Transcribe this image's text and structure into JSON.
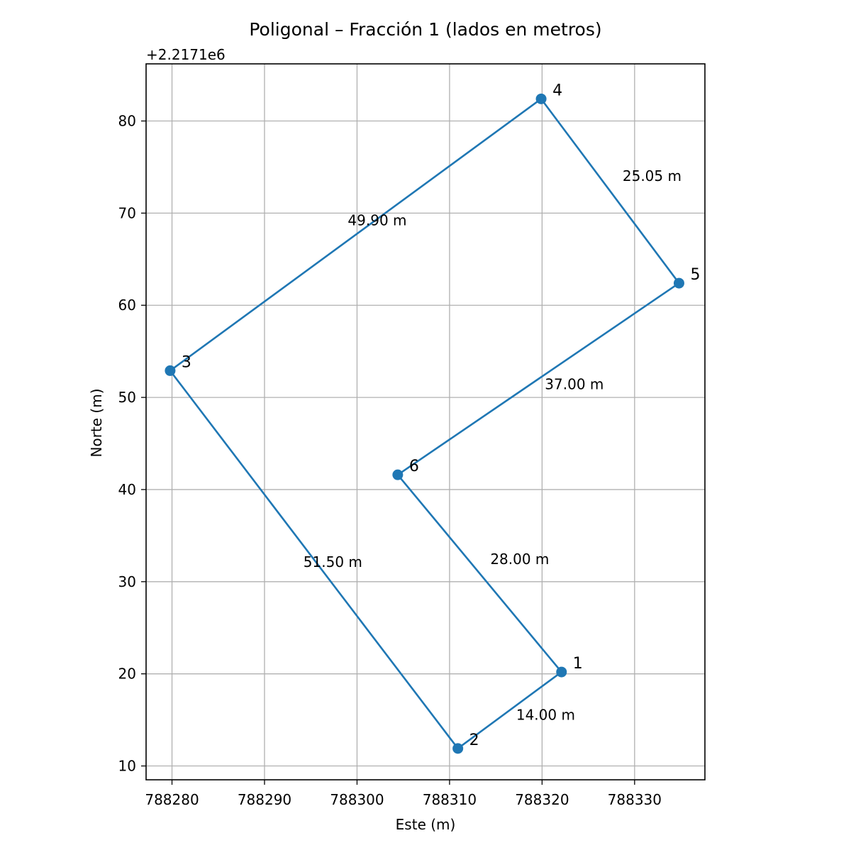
{
  "chart_data": {
    "type": "line",
    "title": "Poligonal – Fracción 1 (lados en metros)",
    "xlabel": "Este (m)",
    "ylabel": "Norte (m)",
    "y_offset_label": "+2.2171e6",
    "xlim": [
      788277.2,
      788337.6
    ],
    "ylim": [
      8.5,
      86.2
    ],
    "x_ticks": [
      788280,
      788290,
      788300,
      788310,
      788320,
      788330
    ],
    "y_ticks": [
      10,
      20,
      30,
      40,
      50,
      60,
      70,
      80
    ],
    "x_tick_labels": [
      "788280",
      "788290",
      "788300",
      "788310",
      "788320",
      "788330"
    ],
    "y_tick_labels": [
      "10",
      "20",
      "30",
      "40",
      "50",
      "60",
      "70",
      "80"
    ],
    "grid": true,
    "line_color": "#1f77b4",
    "points": [
      {
        "label": "1",
        "x": 788322.1,
        "y": 20.2
      },
      {
        "label": "2",
        "x": 788310.9,
        "y": 11.9
      },
      {
        "label": "3",
        "x": 788279.8,
        "y": 52.9
      },
      {
        "label": "4",
        "x": 788319.9,
        "y": 82.4
      },
      {
        "label": "5",
        "x": 788334.8,
        "y": 62.4
      },
      {
        "label": "6",
        "x": 788304.4,
        "y": 41.6
      }
    ],
    "edge_labels": [
      {
        "text": "14.00 m",
        "x": 788317.2,
        "y": 15.0
      },
      {
        "text": "51.50 m",
        "x": 788294.2,
        "y": 31.6
      },
      {
        "text": "49.90 m",
        "x": 788299.0,
        "y": 68.7
      },
      {
        "text": "25.05 m",
        "x": 788328.7,
        "y": 73.5
      },
      {
        "text": "37.00 m",
        "x": 788320.3,
        "y": 50.9
      },
      {
        "text": "28.00 m",
        "x": 788314.4,
        "y": 31.9
      }
    ]
  }
}
